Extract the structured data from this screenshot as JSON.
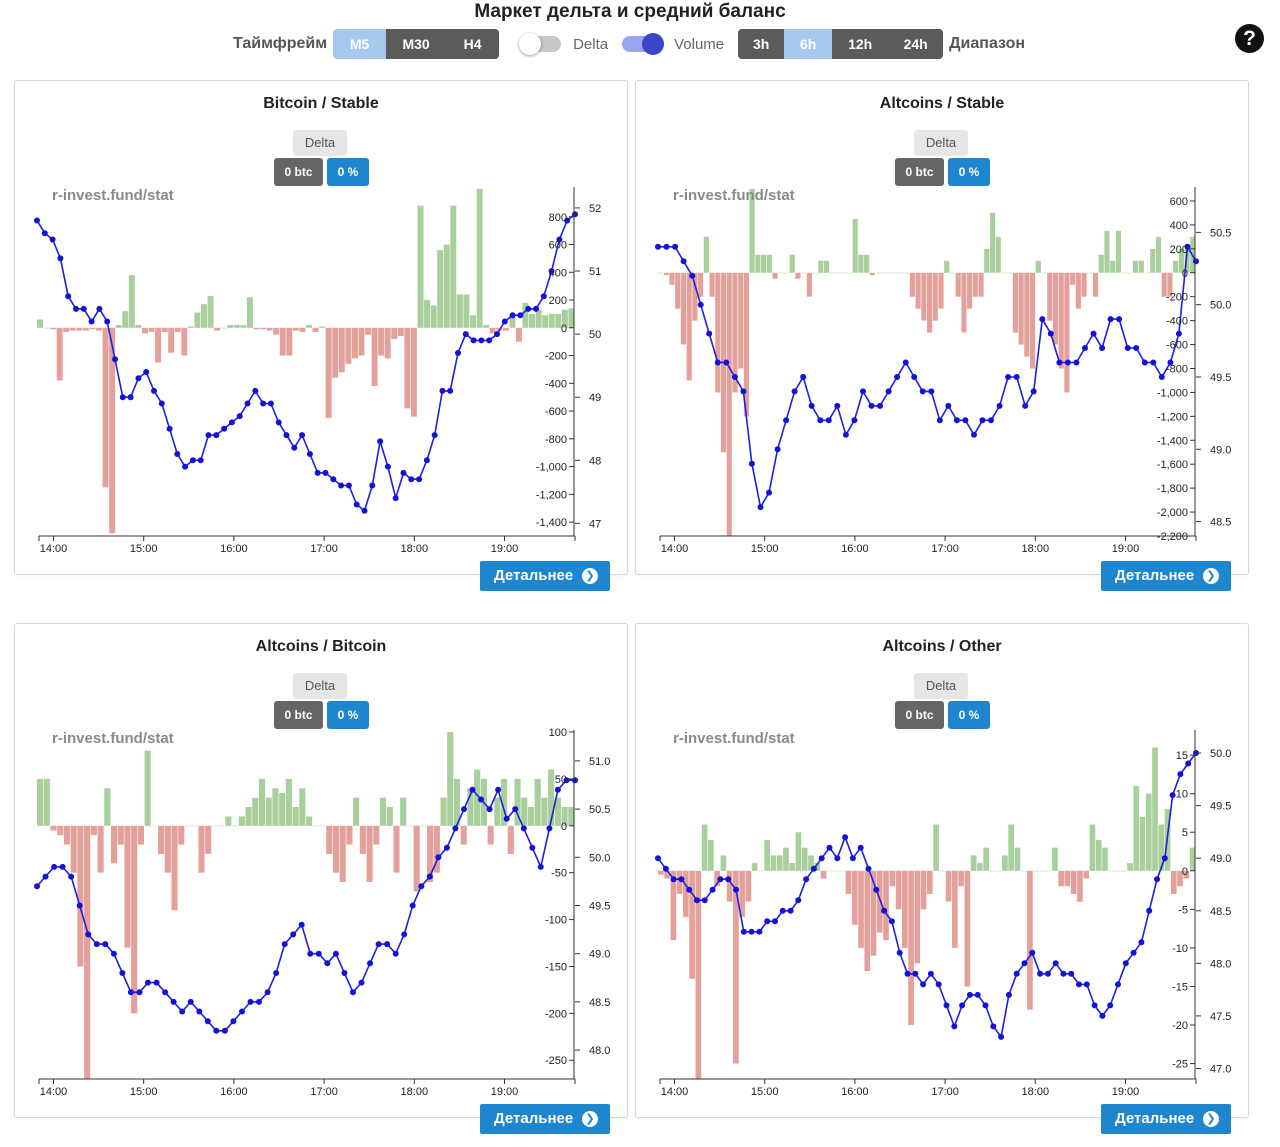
{
  "page": {
    "title": "Маркет дельта и средний баланс",
    "help_label": "?"
  },
  "controls": {
    "timeframe_label": "Таймфрейм",
    "timeframes": [
      {
        "label": "M5",
        "active": true
      },
      {
        "label": "M30",
        "active": false
      },
      {
        "label": "H4",
        "active": false
      }
    ],
    "delta_toggle": {
      "label": "Delta",
      "on": false
    },
    "volume_toggle": {
      "label": "Volume",
      "on": true
    },
    "ranges": [
      {
        "label": "3h",
        "active": false
      },
      {
        "label": "6h",
        "active": true
      },
      {
        "label": "12h",
        "active": false
      },
      {
        "label": "24h",
        "active": false
      }
    ],
    "range_label": "Диапазон"
  },
  "colors": {
    "positive_bar": "#a9cf9c",
    "negative_bar": "#e4a19c",
    "line": "#1f1fe0",
    "point": "#1212d8"
  },
  "panels": [
    {
      "title": "Bitcoin / Stable",
      "delta_label": "Delta",
      "btc_value": "0 btc",
      "pct_value": "0 %",
      "watermark": "r-invest.fund/stat",
      "button_label": "Детальнее"
    },
    {
      "title": "Altcoins / Stable",
      "delta_label": "Delta",
      "btc_value": "0 btc",
      "pct_value": "0 %",
      "watermark": "r-invest.fund/stat",
      "button_label": "Детальнее"
    },
    {
      "title": "Altcoins / Bitcoin",
      "delta_label": "Delta",
      "btc_value": "0 btc",
      "pct_value": "0 %",
      "watermark": "r-invest.fund/stat",
      "button_label": "Детальнее"
    },
    {
      "title": "Altcoins / Other",
      "delta_label": "Delta",
      "btc_value": "0 btc",
      "pct_value": "0 %",
      "watermark": "r-invest.fund/stat",
      "button_label": "Детальнее"
    }
  ],
  "chart_data": [
    {
      "type": "bar+line",
      "title": "Bitcoin / Stable",
      "x_ticks": [
        "14:00",
        "15:00",
        "16:00",
        "17:00",
        "18:00",
        "19:00"
      ],
      "y_left": {
        "range": [
          -1500,
          1000
        ],
        "ticks": [
          "800",
          "600",
          "400",
          "200",
          "0",
          "-200",
          "-400",
          "-600",
          "-800",
          "-1,000",
          "-1,200",
          "-1,400"
        ]
      },
      "y_right": {
        "range": [
          46.8,
          52.3
        ],
        "ticks": [
          "52",
          "51",
          "50",
          "49",
          "48",
          "47"
        ]
      },
      "series": [
        {
          "name": "Delta",
          "kind": "bar",
          "values": [
            60,
            0,
            -10,
            -380,
            -30,
            -20,
            -20,
            -20,
            -10,
            -20,
            -1150,
            -1480,
            20,
            120,
            380,
            20,
            -40,
            -30,
            -250,
            -30,
            -180,
            -30,
            -200,
            10,
            110,
            170,
            230,
            -20,
            0,
            20,
            20,
            20,
            220,
            -10,
            -10,
            -20,
            -50,
            -200,
            -200,
            -20,
            -30,
            20,
            -30,
            10,
            -650,
            -360,
            -320,
            -260,
            -220,
            -200,
            -50,
            -420,
            -200,
            -220,
            -80,
            -60,
            -580,
            -640,
            880,
            200,
            160,
            560,
            600,
            880,
            240,
            240,
            90,
            1000,
            20,
            -40,
            -20,
            -20,
            80,
            -100,
            180,
            100,
            130,
            90,
            100,
            100,
            130,
            140
          ]
        },
        {
          "name": "Balance",
          "kind": "line",
          "values": [
            51.8,
            51.6,
            51.5,
            51.2,
            50.6,
            50.4,
            50.4,
            50.2,
            50.4,
            50.2,
            49.6,
            49.0,
            49.0,
            49.3,
            49.4,
            49.1,
            48.9,
            48.5,
            48.1,
            47.9,
            48.0,
            48.0,
            48.4,
            48.4,
            48.5,
            48.6,
            48.7,
            48.9,
            49.1,
            48.9,
            48.9,
            48.6,
            48.4,
            48.2,
            48.4,
            48.1,
            47.8,
            47.8,
            47.7,
            47.6,
            47.6,
            47.3,
            47.2,
            47.6,
            48.3,
            47.9,
            47.4,
            47.8,
            47.7,
            47.7,
            48.0,
            48.4,
            49.1,
            49.1,
            49.7,
            50.0,
            49.9,
            49.9,
            49.9,
            50.0,
            50.2,
            50.3,
            50.3,
            50.4,
            50.4,
            50.6,
            51.0,
            51.5,
            51.8,
            51.9
          ]
        }
      ]
    },
    {
      "type": "bar+line",
      "title": "Altcoins / Stable",
      "x_ticks": [
        "14:00",
        "15:00",
        "16:00",
        "17:00",
        "18:00",
        "19:00"
      ],
      "y_left": {
        "range": [
          -2200,
          700
        ],
        "ticks": [
          "600",
          "400",
          "200",
          "0",
          "-200",
          "-400",
          "-600",
          "-800",
          "-1,000",
          "-1,200",
          "-1,400",
          "-1,600",
          "-1,800",
          "-2,000",
          "-2,200"
        ]
      },
      "y_right": {
        "range": [
          48.4,
          50.8
        ],
        "ticks": [
          "50.5",
          "50.0",
          "49.5",
          "49.0",
          "48.5"
        ]
      },
      "series": [
        {
          "name": "Delta",
          "kind": "bar",
          "values": [
            0,
            -20,
            -100,
            -300,
            -600,
            -900,
            -400,
            -200,
            300,
            -200,
            -1000,
            -1500,
            -2200,
            -1000,
            -800,
            -1200,
            700,
            150,
            150,
            150,
            -50,
            0,
            0,
            150,
            -50,
            0,
            -200,
            0,
            100,
            100,
            0,
            0,
            0,
            0,
            450,
            150,
            150,
            -20,
            0,
            0,
            0,
            0,
            0,
            0,
            -200,
            -300,
            -400,
            -500,
            -400,
            -300,
            100,
            0,
            -200,
            -500,
            -300,
            -200,
            -200,
            200,
            500,
            300,
            0,
            0,
            -500,
            -600,
            -700,
            -800,
            100,
            0,
            -400,
            -600,
            -800,
            -1000,
            -100,
            -300,
            -200,
            0,
            -200,
            150,
            350,
            100,
            350,
            0,
            0,
            100,
            100,
            0,
            200,
            300,
            -200,
            -200,
            100,
            200,
            200,
            300
          ]
        },
        {
          "name": "Balance",
          "kind": "line",
          "values": [
            50.4,
            50.4,
            50.4,
            50.3,
            50.2,
            50.0,
            49.8,
            49.6,
            49.6,
            49.5,
            49.4,
            48.9,
            48.6,
            48.7,
            49.0,
            49.2,
            49.4,
            49.5,
            49.3,
            49.2,
            49.2,
            49.3,
            49.1,
            49.2,
            49.4,
            49.3,
            49.3,
            49.4,
            49.5,
            49.6,
            49.5,
            49.4,
            49.4,
            49.2,
            49.3,
            49.2,
            49.2,
            49.1,
            49.2,
            49.2,
            49.3,
            49.5,
            49.5,
            49.3,
            49.4,
            49.9,
            49.8,
            49.6,
            49.6,
            49.6,
            49.7,
            49.8,
            49.7,
            49.9,
            49.9,
            49.7,
            49.7,
            49.6,
            49.6,
            49.5,
            49.6,
            49.8,
            50.4,
            50.3
          ]
        }
      ]
    },
    {
      "type": "bar+line",
      "title": "Altcoins / Bitcoin",
      "x_ticks": [
        "14:00",
        "15:00",
        "16:00",
        "17:00",
        "18:00",
        "19:00"
      ],
      "y_left": {
        "range": [
          -270,
          100
        ],
        "ticks": [
          "100",
          "50",
          "0",
          "-50",
          "-100",
          "-150",
          "-200",
          "-250"
        ]
      },
      "y_right": {
        "range": [
          47.7,
          51.3
        ],
        "ticks": [
          "51.0",
          "50.5",
          "50.0",
          "49.5",
          "49.0",
          "48.5",
          "48.0"
        ]
      },
      "series": [
        {
          "name": "Delta",
          "kind": "bar",
          "values": [
            50,
            50,
            -5,
            -10,
            -20,
            -50,
            -150,
            -270,
            -10,
            -50,
            40,
            -40,
            -20,
            -130,
            -200,
            -20,
            80,
            0,
            -30,
            -50,
            -90,
            -20,
            0,
            0,
            -50,
            -30,
            0,
            0,
            10,
            0,
            10,
            20,
            30,
            50,
            30,
            40,
            35,
            50,
            20,
            40,
            10,
            0,
            0,
            -30,
            -50,
            -60,
            -20,
            30,
            -30,
            -60,
            -20,
            30,
            20,
            -50,
            30,
            0,
            -70,
            0,
            -60,
            -50,
            30,
            100,
            50,
            -20,
            40,
            60,
            50,
            -20,
            30,
            50,
            -30,
            50,
            30,
            20,
            50,
            30,
            60,
            30,
            20,
            20
          ]
        },
        {
          "name": "Balance",
          "kind": "line",
          "values": [
            49.7,
            49.8,
            49.9,
            49.9,
            49.8,
            49.5,
            49.2,
            49.1,
            49.1,
            49.0,
            48.8,
            48.6,
            48.6,
            48.7,
            48.7,
            48.6,
            48.5,
            48.4,
            48.5,
            48.4,
            48.3,
            48.2,
            48.2,
            48.3,
            48.4,
            48.5,
            48.5,
            48.6,
            48.8,
            49.1,
            49.2,
            49.3,
            49.0,
            49.0,
            48.9,
            49.0,
            48.8,
            48.6,
            48.7,
            48.9,
            49.1,
            49.1,
            49.0,
            49.2,
            49.5,
            49.7,
            49.8,
            50.0,
            50.1,
            50.3,
            50.5,
            50.7,
            50.6,
            50.5,
            50.7,
            50.4,
            50.5,
            50.3,
            50.1,
            49.9,
            50.3,
            50.7,
            50.8,
            50.8
          ]
        }
      ]
    },
    {
      "type": "bar+line",
      "title": "Altcoins / Other",
      "x_ticks": [
        "14:00",
        "15:00",
        "16:00",
        "17:00",
        "18:00",
        "19:00"
      ],
      "y_left": {
        "range": [
          -27,
          18
        ],
        "ticks": [
          "15",
          "10",
          "5",
          "0",
          "-5",
          "-10",
          "-15",
          "-20",
          "-25"
        ]
      },
      "y_right": {
        "range": [
          46.9,
          50.2
        ],
        "ticks": [
          "50.0",
          "49.5",
          "49.0",
          "48.5",
          "48.0",
          "47.5",
          "47.0"
        ]
      },
      "series": [
        {
          "name": "Delta",
          "kind": "bar",
          "values": [
            -0.5,
            -1,
            -9,
            -3,
            -6,
            -14,
            -27,
            6,
            4,
            -2,
            2,
            -4,
            -25,
            -6,
            -4,
            1,
            0,
            4,
            2,
            2,
            3,
            1,
            5,
            3,
            2,
            1,
            -1,
            0,
            0,
            0,
            -3,
            -7,
            -10,
            -13,
            -11,
            -8,
            -9,
            -2,
            -5,
            -10,
            -20,
            -12,
            -5,
            -3,
            6,
            0,
            -4,
            -10,
            -2,
            -15,
            2,
            1,
            3,
            0,
            0,
            2,
            6,
            3,
            0,
            -18,
            0,
            0,
            0,
            3,
            -2,
            -2,
            -3,
            -4,
            -1,
            6,
            4,
            3,
            0,
            0,
            0,
            1,
            11,
            7,
            10,
            16,
            6,
            8,
            -3,
            -2,
            -1,
            3
          ]
        },
        {
          "name": "Balance",
          "kind": "line",
          "values": [
            49.0,
            48.9,
            48.8,
            48.8,
            48.7,
            48.6,
            48.6,
            48.7,
            48.8,
            48.8,
            48.7,
            48.3,
            48.3,
            48.3,
            48.4,
            48.4,
            48.5,
            48.5,
            48.6,
            48.8,
            48.9,
            49.0,
            49.1,
            49.0,
            49.2,
            49.0,
            49.1,
            48.9,
            48.7,
            48.5,
            48.4,
            48.1,
            47.9,
            47.9,
            47.8,
            47.9,
            47.8,
            47.6,
            47.4,
            47.6,
            47.7,
            47.7,
            47.6,
            47.4,
            47.3,
            47.7,
            47.9,
            48.0,
            48.1,
            47.9,
            47.9,
            48.0,
            47.9,
            47.9,
            47.8,
            47.8,
            47.6,
            47.5,
            47.6,
            47.8,
            48.0,
            48.1,
            48.2,
            48.5,
            48.8,
            49.0,
            49.6,
            49.8,
            49.9,
            50.0
          ]
        }
      ]
    }
  ]
}
